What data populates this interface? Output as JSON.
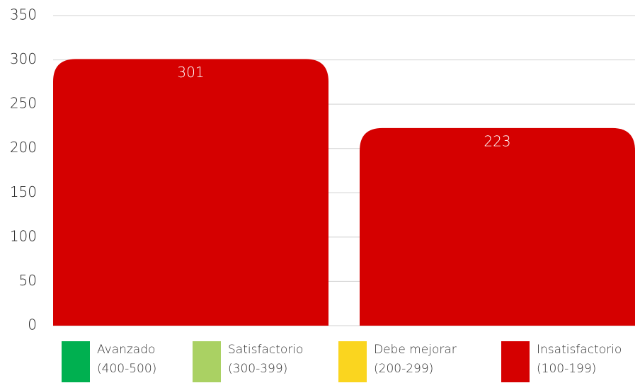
{
  "chart_data": {
    "type": "bar",
    "categories": [
      null,
      null
    ],
    "values": [
      301,
      223
    ],
    "color": "#d50000",
    "ylim": [
      0,
      350
    ],
    "yticks": [
      0,
      50,
      100,
      150,
      200,
      250,
      300,
      350
    ],
    "grid": true,
    "legend": [
      {
        "name": "Avanzado",
        "range": "(400-500)",
        "color": "#00b050"
      },
      {
        "name": "Satisfactorio",
        "range": "(300-399)",
        "color": "#aad163"
      },
      {
        "name": "Debe mejorar",
        "range": "(200-299)",
        "color": "#fad51f"
      },
      {
        "name": "Insatisfactorio",
        "range": "(100-199)",
        "color": "#d50000"
      }
    ]
  }
}
